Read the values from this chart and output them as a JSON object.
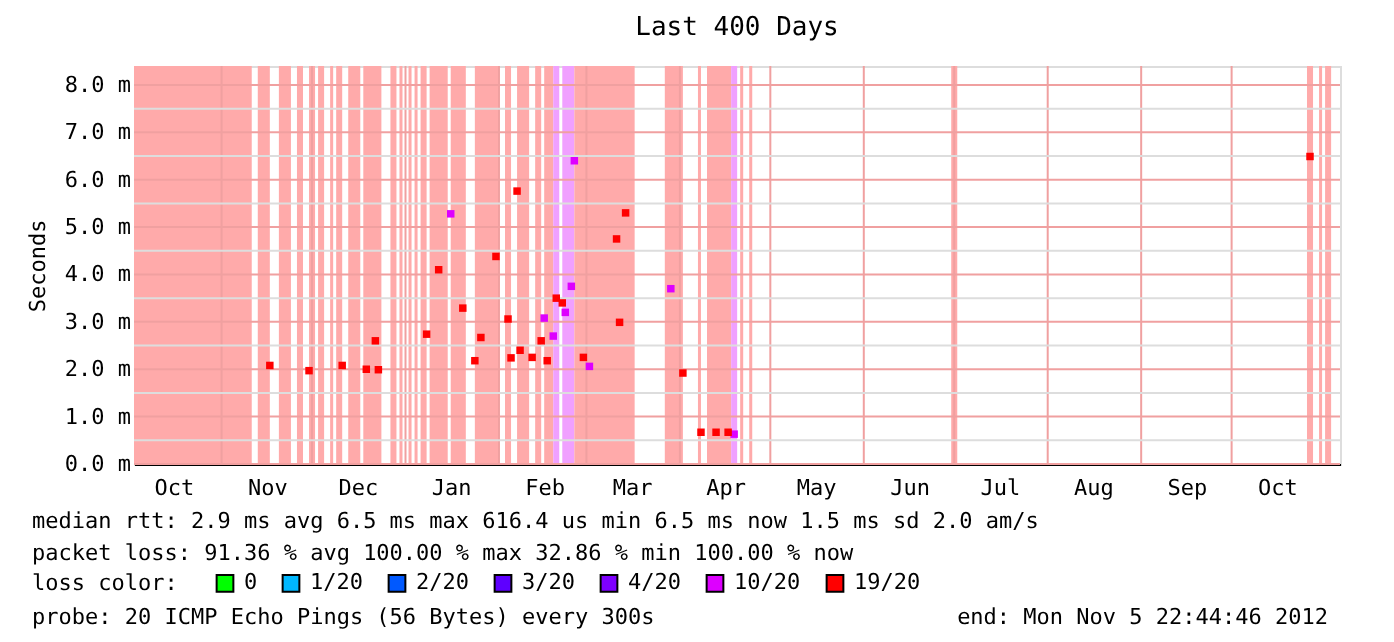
{
  "chart_data": {
    "type": "scatter",
    "title": "Last 400 Days",
    "ylabel": "Seconds",
    "legend_title": "loss color:",
    "legend": "bottom",
    "grid": true,
    "marker": "square",
    "xlim": [
      "2011-10-02T22:44",
      "2012-11-05T22:44"
    ],
    "xticks": [
      {
        "value": "2011-10-16",
        "label": "Oct"
      },
      {
        "value": "2011-11-01",
        "label": null
      },
      {
        "value": "2011-11-16",
        "label": "Nov"
      },
      {
        "value": "2011-12-01",
        "label": null
      },
      {
        "value": "2011-12-16",
        "label": "Dec"
      },
      {
        "value": "2012-01-01",
        "label": null
      },
      {
        "value": "2012-01-16",
        "label": "Jan"
      },
      {
        "value": "2012-02-01",
        "label": null
      },
      {
        "value": "2012-02-16",
        "label": "Feb"
      },
      {
        "value": "2012-03-01",
        "label": null
      },
      {
        "value": "2012-03-16",
        "label": "Mar"
      },
      {
        "value": "2012-04-01",
        "label": null
      },
      {
        "value": "2012-04-16",
        "label": "Apr"
      },
      {
        "value": "2012-05-01",
        "label": null
      },
      {
        "value": "2012-05-16",
        "label": "May"
      },
      {
        "value": "2012-06-01",
        "label": null
      },
      {
        "value": "2012-06-16",
        "label": "Jun"
      },
      {
        "value": "2012-07-01",
        "label": null
      },
      {
        "value": "2012-07-16",
        "label": "Jul"
      },
      {
        "value": "2012-08-01",
        "label": null
      },
      {
        "value": "2012-08-16",
        "label": "Aug"
      },
      {
        "value": "2012-09-01",
        "label": null
      },
      {
        "value": "2012-09-16",
        "label": "Sep"
      },
      {
        "value": "2012-10-01",
        "label": null
      },
      {
        "value": "2012-10-16",
        "label": "Oct"
      }
    ],
    "ylim": [
      0,
      8.4
    ],
    "yticks": [
      {
        "value": 0,
        "label": "0.0 m"
      },
      {
        "value": 0.5,
        "label": null
      },
      {
        "value": 1,
        "label": "1.0 m"
      },
      {
        "value": 1.5,
        "label": null
      },
      {
        "value": 2,
        "label": "2.0 m"
      },
      {
        "value": 2.5,
        "label": null
      },
      {
        "value": 3,
        "label": "3.0 m"
      },
      {
        "value": 3.5,
        "label": null
      },
      {
        "value": 4,
        "label": "4.0 m"
      },
      {
        "value": 4.5,
        "label": null
      },
      {
        "value": 5,
        "label": "5.0 m"
      },
      {
        "value": 5.5,
        "label": null
      },
      {
        "value": 6,
        "label": "6.0 m"
      },
      {
        "value": 6.5,
        "label": null
      },
      {
        "value": 7,
        "label": "7.0 m"
      },
      {
        "value": 7.5,
        "label": null
      },
      {
        "value": 8,
        "label": "8.0 m"
      }
    ],
    "bands": [
      {
        "axis": "x",
        "from": "2011-10-02T22:44",
        "to": "2011-11-11",
        "color": "#ffaaaa"
      },
      {
        "axis": "x",
        "from": "2011-11-13",
        "to": "2011-11-17",
        "color": "#ffaaaa"
      },
      {
        "axis": "x",
        "from": "2011-11-20",
        "to": "2011-11-24",
        "color": "#ffaaaa"
      },
      {
        "axis": "x",
        "from": "2011-11-26",
        "to": "2011-11-28",
        "color": "#ffaaaa"
      },
      {
        "axis": "x",
        "from": "2011-11-30",
        "to": "2011-12-02",
        "color": "#ffaaaa"
      },
      {
        "axis": "x",
        "from": "2011-12-03",
        "to": "2011-12-05",
        "color": "#ffaaaa"
      },
      {
        "axis": "x",
        "from": "2011-12-07",
        "to": "2011-12-08",
        "color": "#ffaaaa"
      },
      {
        "axis": "x",
        "from": "2011-12-09",
        "to": "2011-12-11",
        "color": "#ffaaaa"
      },
      {
        "axis": "x",
        "from": "2011-12-13",
        "to": "2011-12-17",
        "color": "#ffaaaa"
      },
      {
        "axis": "x",
        "from": "2011-12-18",
        "to": "2011-12-24",
        "color": "#ffaaaa"
      },
      {
        "axis": "x",
        "from": "2011-12-27",
        "to": "2011-12-29",
        "color": "#ffaaaa"
      },
      {
        "axis": "x",
        "from": "2011-12-30",
        "to": "2011-12-31",
        "color": "#ffaaaa"
      },
      {
        "axis": "x",
        "from": "2012-01-02",
        "to": "2012-01-03",
        "color": "#ffaaaa"
      },
      {
        "axis": "x",
        "from": "2012-01-04",
        "to": "2012-01-05",
        "color": "#ffaaaa"
      },
      {
        "axis": "x",
        "from": "2012-01-06",
        "to": "2012-01-08",
        "color": "#ffaaaa"
      },
      {
        "axis": "x",
        "from": "2012-01-09",
        "to": "2012-01-15",
        "color": "#ffaaaa"
      },
      {
        "axis": "x",
        "from": "2012-01-16",
        "to": "2012-01-21",
        "color": "#ffaaaa"
      },
      {
        "axis": "x",
        "from": "2012-01-24",
        "to": "2012-02-01",
        "color": "#ffaaaa"
      },
      {
        "axis": "x",
        "from": "2012-02-03",
        "to": "2012-02-05",
        "color": "#ffaaaa"
      },
      {
        "axis": "x",
        "from": "2012-02-07",
        "to": "2012-02-11",
        "color": "#ffaaaa"
      },
      {
        "axis": "x",
        "from": "2012-02-13",
        "to": "2012-02-15",
        "color": "#ffaaaa"
      },
      {
        "axis": "x",
        "from": "2012-02-16",
        "to": "2012-02-19",
        "color": "#ffaaaa"
      },
      {
        "axis": "x",
        "from": "2012-02-19",
        "to": "2012-02-21",
        "color": "#f0a0ff"
      },
      {
        "axis": "x",
        "from": "2012-02-22",
        "to": "2012-02-26",
        "color": "#f0a0ff"
      },
      {
        "axis": "x",
        "from": "2012-02-26",
        "to": "2012-03-17",
        "color": "#ffaaaa"
      },
      {
        "axis": "x",
        "from": "2012-03-27",
        "to": "2012-04-02",
        "color": "#ffaaaa"
      },
      {
        "axis": "x",
        "from": "2012-04-07",
        "to": "2012-04-08",
        "color": "#ffaaaa"
      },
      {
        "axis": "x",
        "from": "2012-04-10",
        "to": "2012-04-18",
        "color": "#ffaaaa"
      },
      {
        "axis": "x",
        "from": "2012-04-18",
        "to": "2012-04-20",
        "color": "#f0a0ff"
      },
      {
        "axis": "x",
        "from": "2012-04-21",
        "to": "2012-04-22",
        "color": "#ffaaaa"
      },
      {
        "axis": "x",
        "from": "2012-04-24",
        "to": "2012-04-25",
        "color": "#ffaaaa"
      },
      {
        "axis": "x",
        "from": "2012-06-30",
        "to": "2012-07-02",
        "color": "#ffaaaa"
      },
      {
        "axis": "x",
        "from": "2012-10-26",
        "to": "2012-10-28",
        "color": "#ffaaaa"
      },
      {
        "axis": "x",
        "from": "2012-10-30",
        "to": "2012-10-31",
        "color": "#ffaaaa"
      },
      {
        "axis": "x",
        "from": "2012-11-01",
        "to": "2012-11-03",
        "color": "#ffaaaa"
      }
    ],
    "series": [
      {
        "name": "0",
        "color": "#00ff00"
      },
      {
        "name": "1/20",
        "color": "#00b8ff"
      },
      {
        "name": "2/20",
        "color": "#0059ff"
      },
      {
        "name": "3/20",
        "color": "#5e00ff"
      },
      {
        "name": "4/20",
        "color": "#7e00ff"
      },
      {
        "name": "10/20",
        "color": "#dd00ff",
        "x": [
          "2012-01-16",
          "2012-02-16",
          "2012-02-19",
          "2012-02-23",
          "2012-02-25",
          "2012-02-26",
          "2012-03-02",
          "2012-03-29",
          "2012-04-19"
        ],
        "values": [
          5.28,
          3.08,
          2.7,
          3.2,
          3.75,
          6.4,
          2.06,
          3.7,
          0.63
        ]
      },
      {
        "name": "19/20",
        "color": "#ff0000",
        "x": [
          "2011-11-17",
          "2011-11-30",
          "2011-12-11",
          "2011-12-19",
          "2011-12-22",
          "2011-12-23",
          "2012-01-08",
          "2012-01-12",
          "2012-01-20",
          "2012-01-24",
          "2012-01-26",
          "2012-01-31",
          "2012-02-04",
          "2012-02-05",
          "2012-02-07",
          "2012-02-08",
          "2012-02-12",
          "2012-02-15",
          "2012-02-17",
          "2012-02-20",
          "2012-02-22",
          "2012-02-29",
          "2012-03-11",
          "2012-03-12",
          "2012-03-14",
          "2012-04-02",
          "2012-04-08",
          "2012-04-13",
          "2012-04-17",
          "2012-10-27"
        ],
        "values": [
          2.08,
          1.97,
          2.08,
          2.0,
          2.6,
          1.99,
          2.74,
          4.1,
          3.29,
          2.18,
          2.67,
          4.38,
          3.06,
          2.24,
          5.76,
          2.4,
          2.25,
          2.6,
          2.18,
          3.5,
          3.4,
          2.25,
          4.75,
          2.99,
          5.3,
          1.92,
          0.67,
          0.67,
          0.67,
          6.49
        ]
      }
    ],
    "annotations": [
      "median rtt:  2.9 ms avg  6.5 ms max  616.4 us min  6.5 ms now  1.5 ms sd  2.0   am/s",
      "packet loss: 91.36 % avg  100.00 % max  32.86 % min  100.00 % now",
      "probe:        20 ICMP Echo Pings (56 Bytes) every 300s",
      "end: Mon Nov  5 22:44:46 2012"
    ]
  }
}
